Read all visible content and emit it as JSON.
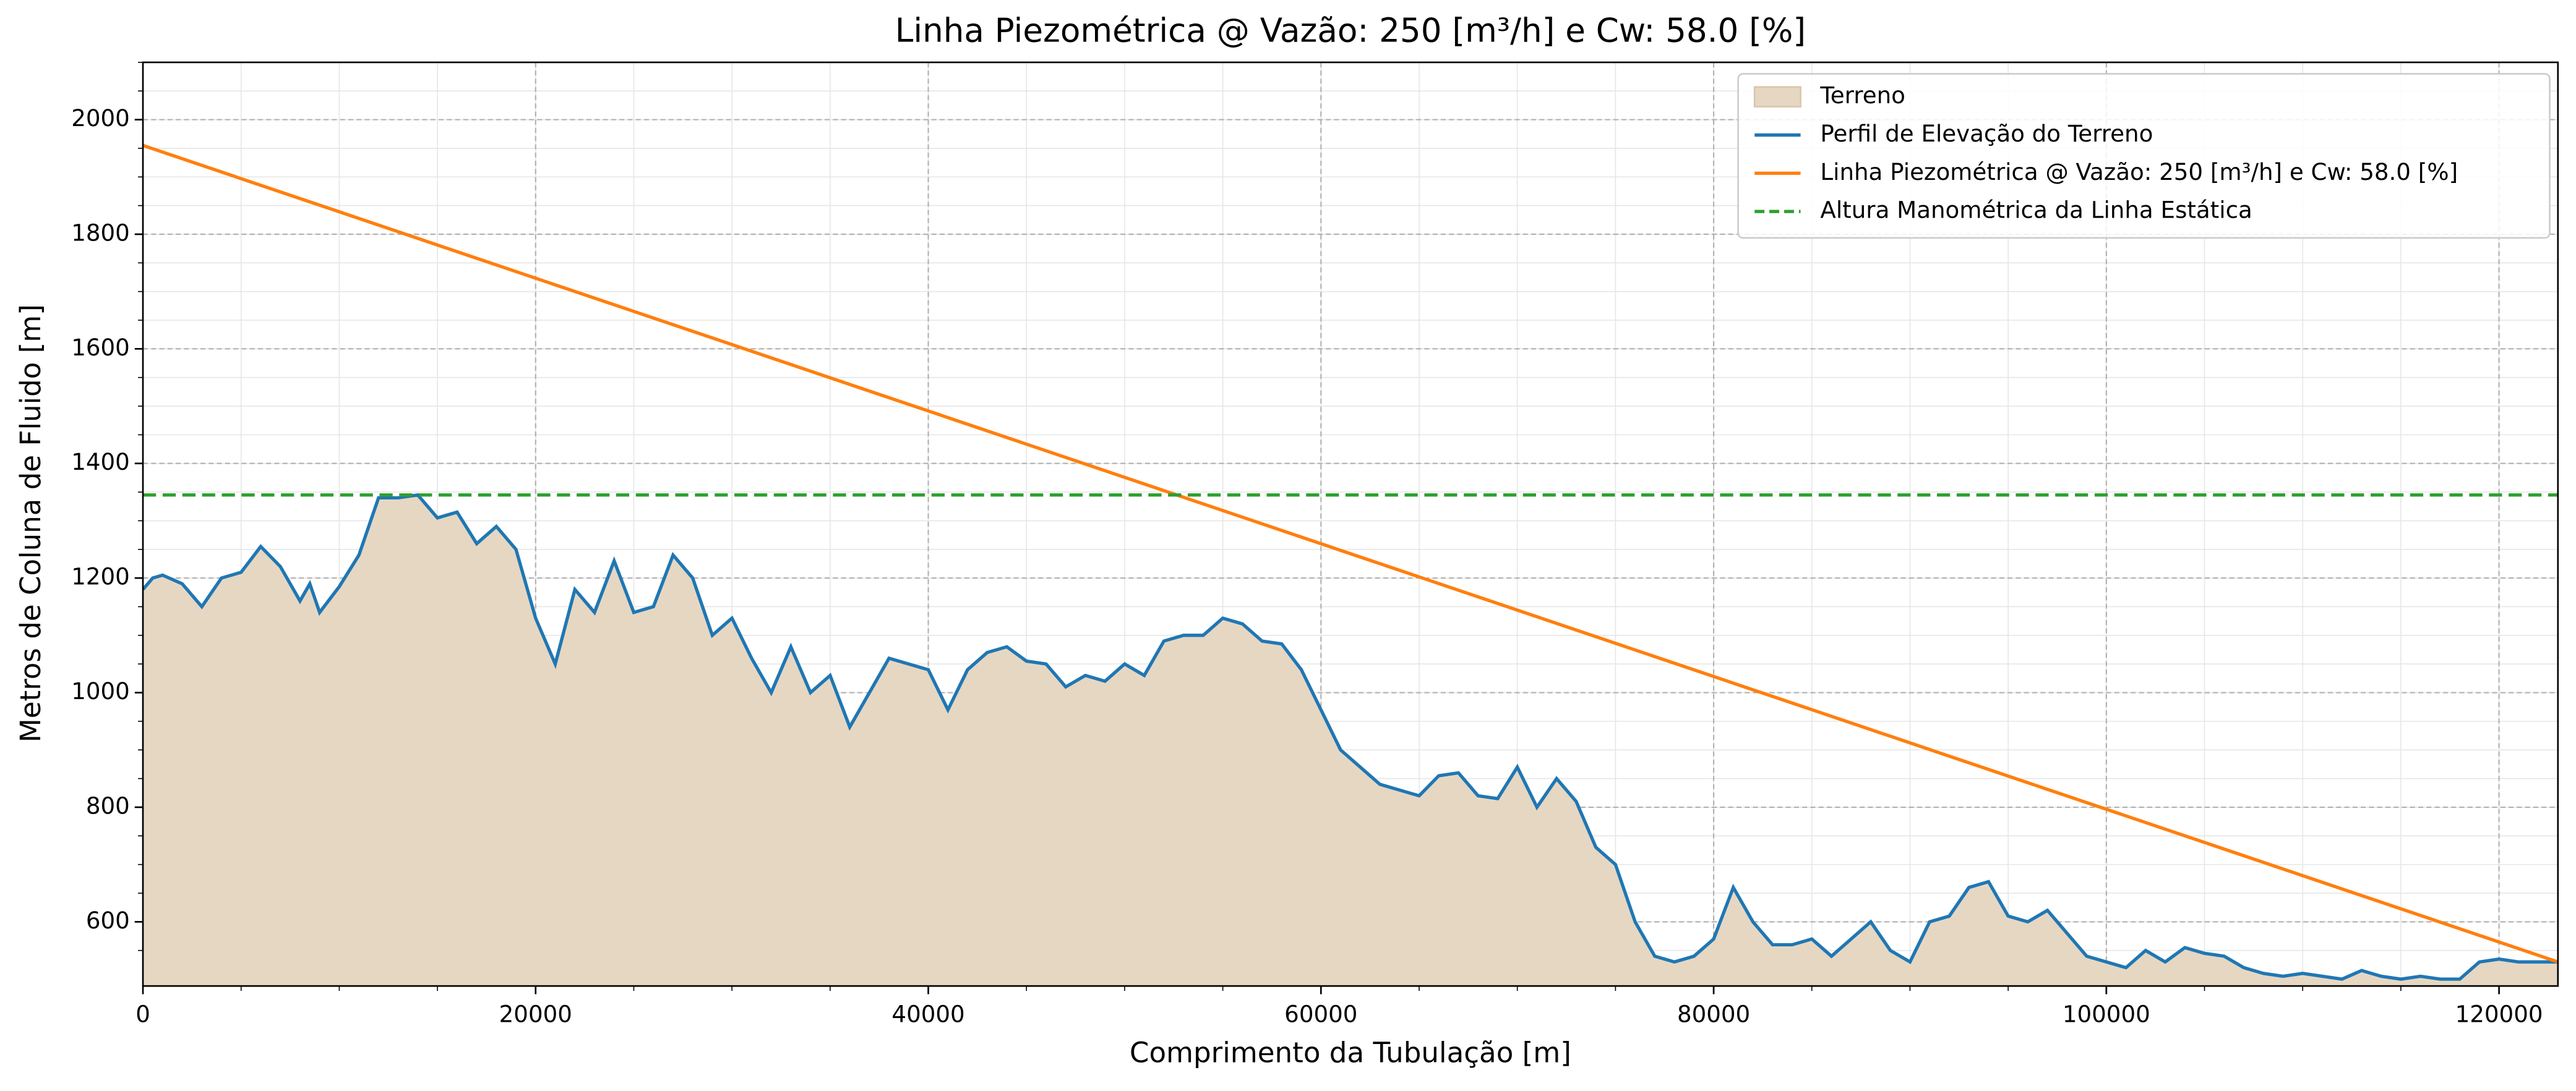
{
  "chart_data": {
    "type": "line",
    "title": "Linha Piezométrica @ Vazão: 250 [m³/h] e Cw: 58.0 [%]",
    "xlabel": "Comprimento da Tubulação [m]",
    "ylabel": "Metros de Coluna de Fluido [m]",
    "x": [
      0,
      500,
      1000,
      2000,
      3000,
      4000,
      5000,
      6000,
      7000,
      8000,
      8500,
      9000,
      10000,
      11000,
      12000,
      13000,
      14000,
      15000,
      16000,
      17000,
      18000,
      19000,
      20000,
      21000,
      22000,
      23000,
      24000,
      25000,
      26000,
      27000,
      28000,
      29000,
      30000,
      31000,
      32000,
      33000,
      34000,
      35000,
      36000,
      37000,
      38000,
      39000,
      40000,
      41000,
      42000,
      43000,
      44000,
      45000,
      46000,
      47000,
      48000,
      49000,
      50000,
      51000,
      52000,
      53000,
      54000,
      55000,
      56000,
      57000,
      58000,
      59000,
      60000,
      61000,
      62000,
      63000,
      64000,
      65000,
      66000,
      67000,
      68000,
      69000,
      70000,
      71000,
      72000,
      73000,
      74000,
      75000,
      76000,
      77000,
      78000,
      79000,
      80000,
      81000,
      82000,
      83000,
      84000,
      85000,
      86000,
      87000,
      88000,
      89000,
      90000,
      91000,
      92000,
      93000,
      94000,
      95000,
      96000,
      97000,
      98000,
      99000,
      100000,
      101000,
      102000,
      103000,
      104000,
      105000,
      106000,
      107000,
      108000,
      109000,
      110000,
      111000,
      112000,
      113000,
      114000,
      115000,
      116000,
      117000,
      118000,
      119000,
      120000,
      121000,
      122000,
      123000
    ],
    "series": [
      {
        "name": "Terreno",
        "color": "#e6d7c3",
        "style": "area"
      },
      {
        "name": "Perfil de Elevação do Terreno",
        "color": "#1f77b4",
        "style": "line",
        "values": [
          1180,
          1200,
          1205,
          1190,
          1150,
          1200,
          1210,
          1255,
          1220,
          1160,
          1190,
          1140,
          1185,
          1240,
          1340,
          1340,
          1345,
          1305,
          1315,
          1260,
          1290,
          1250,
          1130,
          1050,
          1180,
          1140,
          1230,
          1140,
          1150,
          1240,
          1200,
          1100,
          1130,
          1060,
          1000,
          1080,
          1000,
          1030,
          940,
          1000,
          1060,
          1050,
          1040,
          970,
          1040,
          1070,
          1080,
          1055,
          1050,
          1010,
          1030,
          1020,
          1050,
          1030,
          1090,
          1100,
          1100,
          1130,
          1120,
          1090,
          1085,
          1040,
          970,
          900,
          870,
          840,
          830,
          820,
          855,
          860,
          820,
          815,
          870,
          800,
          850,
          810,
          730,
          700,
          600,
          540,
          530,
          540,
          570,
          660,
          600,
          560,
          560,
          570,
          540,
          570,
          600,
          550,
          530,
          600,
          610,
          660,
          670,
          610,
          600,
          620,
          580,
          540,
          530,
          520,
          550,
          530,
          555,
          545,
          540,
          520,
          510,
          505,
          510,
          505,
          500,
          515,
          505,
          500,
          505,
          500,
          500,
          530,
          535,
          530,
          530,
          530
        ]
      },
      {
        "name": "Linha Piezométrica @ Vazão: 250 [m³/h] e Cw: 58.0 [%]",
        "color": "#ff7f0e",
        "style": "line",
        "x": [
          0,
          123000
        ],
        "values": [
          1955,
          530
        ]
      },
      {
        "name": "Altura Manométrica da Linha Estática",
        "color": "#2ca02c",
        "style": "dashed",
        "x": [
          0,
          123000
        ],
        "values": [
          1345,
          1345
        ]
      }
    ],
    "xlim": [
      0,
      123000
    ],
    "ylim": [
      488,
      2100
    ],
    "xticks": [
      0,
      20000,
      40000,
      60000,
      80000,
      100000,
      120000
    ],
    "yticks": [
      600,
      800,
      1000,
      1200,
      1400,
      1600,
      1800,
      2000
    ],
    "grid": true,
    "minor_grid": true,
    "legend": "upper right"
  }
}
